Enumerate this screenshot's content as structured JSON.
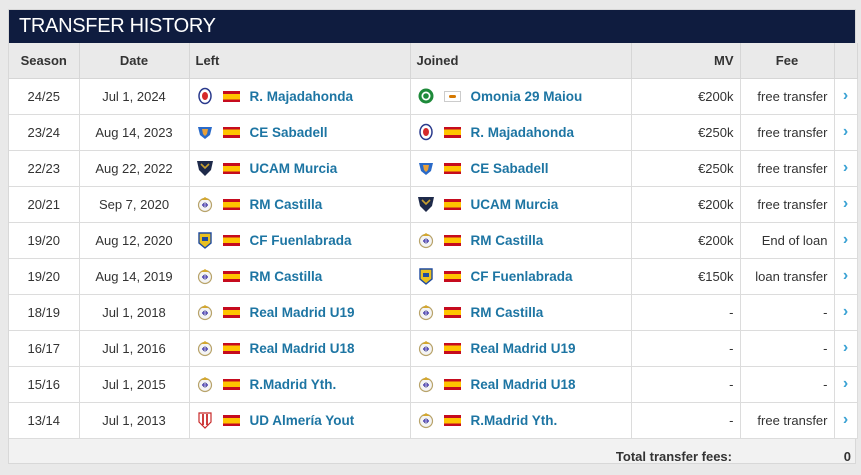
{
  "header": {
    "title": "TRANSFER HISTORY"
  },
  "columns": {
    "season": "Season",
    "date": "Date",
    "left": "Left",
    "joined": "Joined",
    "mv": "MV",
    "fee": "Fee"
  },
  "rows": [
    {
      "season": "24/25",
      "date": "Jul 1, 2024",
      "left": {
        "name": "R. Majadahonda",
        "flag": "es",
        "crest": "majadahonda"
      },
      "joined": {
        "name": "Omonia 29 Maiou",
        "flag": "cy",
        "crest": "omonia"
      },
      "mv": "€200k",
      "fee": "free transfer"
    },
    {
      "season": "23/24",
      "date": "Aug 14, 2023",
      "left": {
        "name": "CE Sabadell",
        "flag": "es",
        "crest": "sabadell"
      },
      "joined": {
        "name": "R. Majadahonda",
        "flag": "es",
        "crest": "majadahonda"
      },
      "mv": "€250k",
      "fee": "free transfer"
    },
    {
      "season": "22/23",
      "date": "Aug 22, 2022",
      "left": {
        "name": "UCAM Murcia",
        "flag": "es",
        "crest": "ucam"
      },
      "joined": {
        "name": "CE Sabadell",
        "flag": "es",
        "crest": "sabadell"
      },
      "mv": "€250k",
      "fee": "free transfer"
    },
    {
      "season": "20/21",
      "date": "Sep 7, 2020",
      "left": {
        "name": "RM Castilla",
        "flag": "es",
        "crest": "realmadrid"
      },
      "joined": {
        "name": "UCAM Murcia",
        "flag": "es",
        "crest": "ucam"
      },
      "mv": "€200k",
      "fee": "free transfer"
    },
    {
      "season": "19/20",
      "date": "Aug 12, 2020",
      "left": {
        "name": "CF Fuenlabrada",
        "flag": "es",
        "crest": "fuenlabrada"
      },
      "joined": {
        "name": "RM Castilla",
        "flag": "es",
        "crest": "realmadrid"
      },
      "mv": "€200k",
      "fee": "End of loan"
    },
    {
      "season": "19/20",
      "date": "Aug 14, 2019",
      "left": {
        "name": "RM Castilla",
        "flag": "es",
        "crest": "realmadrid"
      },
      "joined": {
        "name": "CF Fuenlabrada",
        "flag": "es",
        "crest": "fuenlabrada"
      },
      "mv": "€150k",
      "fee": "loan transfer"
    },
    {
      "season": "18/19",
      "date": "Jul 1, 2018",
      "left": {
        "name": "Real Madrid U19",
        "flag": "es",
        "crest": "realmadrid"
      },
      "joined": {
        "name": "RM Castilla",
        "flag": "es",
        "crest": "realmadrid"
      },
      "mv": "-",
      "fee": "-"
    },
    {
      "season": "16/17",
      "date": "Jul 1, 2016",
      "left": {
        "name": "Real Madrid U18",
        "flag": "es",
        "crest": "realmadrid"
      },
      "joined": {
        "name": "Real Madrid U19",
        "flag": "es",
        "crest": "realmadrid"
      },
      "mv": "-",
      "fee": "-"
    },
    {
      "season": "15/16",
      "date": "Jul 1, 2015",
      "left": {
        "name": "R.Madrid Yth.",
        "flag": "es",
        "crest": "realmadrid"
      },
      "joined": {
        "name": "Real Madrid U18",
        "flag": "es",
        "crest": "realmadrid"
      },
      "mv": "-",
      "fee": "-"
    },
    {
      "season": "13/14",
      "date": "Jul 1, 2013",
      "left": {
        "name": "UD Almería Yout",
        "flag": "es",
        "crest": "almeria"
      },
      "joined": {
        "name": "R.Madrid Yth.",
        "flag": "es",
        "crest": "realmadrid"
      },
      "mv": "-",
      "fee": "free transfer"
    }
  ],
  "footer": {
    "label": "Total transfer fees:",
    "value": "0"
  }
}
